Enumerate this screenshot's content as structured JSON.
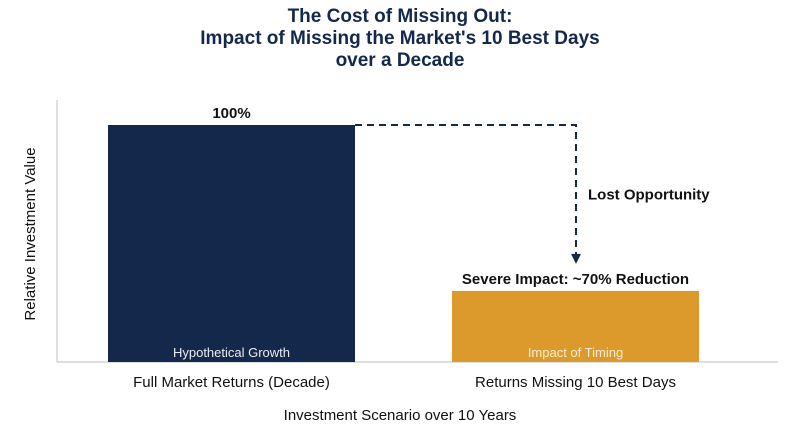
{
  "chart_data": {
    "type": "bar",
    "title_lines": [
      "The Cost of Missing Out:",
      "Impact of Missing the Market's 10 Best Days",
      "over a Decade"
    ],
    "xlabel": "Investment Scenario over 10 Years",
    "ylabel": "Relative Investment Value",
    "categories": [
      "Full Market Returns (Decade)",
      "Returns Missing 10 Best Days"
    ],
    "values": [
      100,
      30
    ],
    "ylim": [
      0,
      100
    ],
    "bar_inner_labels": [
      "Hypothetical Growth",
      "Impact of Timing"
    ],
    "bar_top_labels": [
      "100%",
      "Severe Impact: ~70% Reduction"
    ],
    "annotation": "Lost Opportunity",
    "colors": [
      "#14284b",
      "#db9a2b"
    ],
    "grid": false,
    "legend": "none"
  }
}
